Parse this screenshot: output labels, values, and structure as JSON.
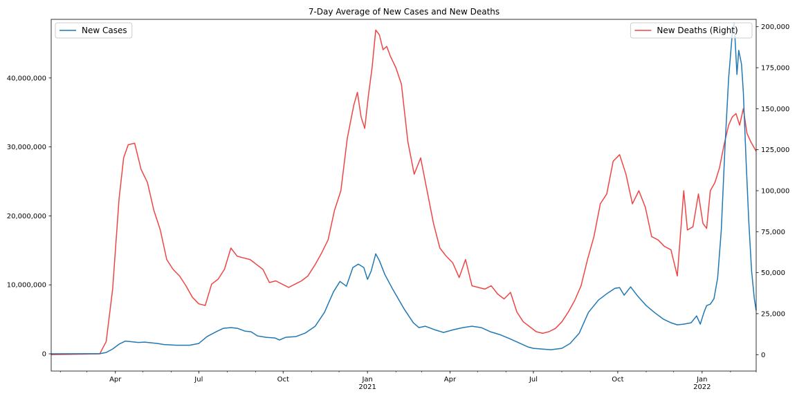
{
  "chart_data": {
    "type": "line",
    "title": "7-Day Average of New Cases and New Deaths",
    "xlabel": "",
    "ylabel_left": "",
    "ylabel_right": "",
    "x_range": [
      "2020-01-22",
      "2022-03-01"
    ],
    "x_ticks": [
      {
        "date": "2020-04-01",
        "label": "Apr",
        "sublabel": ""
      },
      {
        "date": "2020-07-01",
        "label": "Jul",
        "sublabel": ""
      },
      {
        "date": "2020-10-01",
        "label": "Oct",
        "sublabel": ""
      },
      {
        "date": "2021-01-01",
        "label": "Jan",
        "sublabel": "2021"
      },
      {
        "date": "2021-04-01",
        "label": "Apr",
        "sublabel": ""
      },
      {
        "date": "2021-07-01",
        "label": "Jul",
        "sublabel": ""
      },
      {
        "date": "2021-10-01",
        "label": "Oct",
        "sublabel": ""
      },
      {
        "date": "2022-01-01",
        "label": "Jan",
        "sublabel": "2022"
      }
    ],
    "left_axis": {
      "ylim": [
        -2500000,
        48500000
      ],
      "ticks": [
        {
          "value": 0,
          "label": "0"
        },
        {
          "value": 10000000,
          "label": "10,000,000"
        },
        {
          "value": 20000000,
          "label": "20,000,000"
        },
        {
          "value": 30000000,
          "label": "30,000,000"
        },
        {
          "value": 40000000,
          "label": "40,000,000"
        }
      ]
    },
    "right_axis": {
      "ylim": [
        -10000,
        204500
      ],
      "ticks": [
        {
          "value": 0,
          "label": "0"
        },
        {
          "value": 25000,
          "label": "25,000"
        },
        {
          "value": 50000,
          "label": "50,000"
        },
        {
          "value": 75000,
          "label": "75,000"
        },
        {
          "value": 100000,
          "label": "100,000"
        },
        {
          "value": 125000,
          "label": "125,000"
        },
        {
          "value": 150000,
          "label": "150,000"
        },
        {
          "value": 175000,
          "label": "175,000"
        },
        {
          "value": 200000,
          "label": "200,000"
        }
      ]
    },
    "series": [
      {
        "name": "New Cases",
        "axis": "left",
        "color": "#1f77b4",
        "legend_position": "upper left",
        "points": [
          [
            "2020-01-22",
            0
          ],
          [
            "2020-03-15",
            10000
          ],
          [
            "2020-03-22",
            200000
          ],
          [
            "2020-03-29",
            700000
          ],
          [
            "2020-04-05",
            1400000
          ],
          [
            "2020-04-12",
            1850000
          ],
          [
            "2020-04-19",
            1750000
          ],
          [
            "2020-04-26",
            1650000
          ],
          [
            "2020-05-03",
            1700000
          ],
          [
            "2020-05-10",
            1600000
          ],
          [
            "2020-05-17",
            1500000
          ],
          [
            "2020-05-24",
            1350000
          ],
          [
            "2020-06-07",
            1250000
          ],
          [
            "2020-06-21",
            1250000
          ],
          [
            "2020-07-01",
            1500000
          ],
          [
            "2020-07-10",
            2500000
          ],
          [
            "2020-07-20",
            3200000
          ],
          [
            "2020-07-28",
            3700000
          ],
          [
            "2020-08-05",
            3800000
          ],
          [
            "2020-08-12",
            3700000
          ],
          [
            "2020-08-20",
            3300000
          ],
          [
            "2020-08-27",
            3200000
          ],
          [
            "2020-09-03",
            2600000
          ],
          [
            "2020-09-12",
            2400000
          ],
          [
            "2020-09-22",
            2300000
          ],
          [
            "2020-09-27",
            2000000
          ],
          [
            "2020-10-04",
            2400000
          ],
          [
            "2020-10-15",
            2500000
          ],
          [
            "2020-10-25",
            3000000
          ],
          [
            "2020-11-05",
            4000000
          ],
          [
            "2020-11-15",
            6000000
          ],
          [
            "2020-11-25",
            9000000
          ],
          [
            "2020-12-02",
            10500000
          ],
          [
            "2020-12-09",
            9800000
          ],
          [
            "2020-12-16",
            12500000
          ],
          [
            "2020-12-22",
            13000000
          ],
          [
            "2020-12-28",
            12500000
          ],
          [
            "2021-01-01",
            10800000
          ],
          [
            "2021-01-05",
            12000000
          ],
          [
            "2021-01-10",
            14500000
          ],
          [
            "2021-01-14",
            13500000
          ],
          [
            "2021-01-20",
            11500000
          ],
          [
            "2021-01-28",
            9500000
          ],
          [
            "2021-02-10",
            6500000
          ],
          [
            "2021-02-20",
            4500000
          ],
          [
            "2021-02-26",
            3800000
          ],
          [
            "2021-03-05",
            4000000
          ],
          [
            "2021-03-15",
            3500000
          ],
          [
            "2021-03-25",
            3100000
          ],
          [
            "2021-04-05",
            3500000
          ],
          [
            "2021-04-15",
            3800000
          ],
          [
            "2021-04-25",
            4000000
          ],
          [
            "2021-05-05",
            3800000
          ],
          [
            "2021-05-15",
            3200000
          ],
          [
            "2021-05-25",
            2800000
          ],
          [
            "2021-06-05",
            2200000
          ],
          [
            "2021-06-15",
            1600000
          ],
          [
            "2021-06-25",
            1000000
          ],
          [
            "2021-07-01",
            800000
          ],
          [
            "2021-07-10",
            700000
          ],
          [
            "2021-07-20",
            600000
          ],
          [
            "2021-08-01",
            800000
          ],
          [
            "2021-08-10",
            1500000
          ],
          [
            "2021-08-20",
            3000000
          ],
          [
            "2021-08-30",
            6000000
          ],
          [
            "2021-09-10",
            7800000
          ],
          [
            "2021-09-20",
            8800000
          ],
          [
            "2021-09-28",
            9500000
          ],
          [
            "2021-10-03",
            9600000
          ],
          [
            "2021-10-08",
            8500000
          ],
          [
            "2021-10-15",
            9700000
          ],
          [
            "2021-10-22",
            8500000
          ],
          [
            "2021-11-01",
            7000000
          ],
          [
            "2021-11-10",
            6000000
          ],
          [
            "2021-11-20",
            5000000
          ],
          [
            "2021-11-28",
            4500000
          ],
          [
            "2021-12-05",
            4200000
          ],
          [
            "2021-12-12",
            4300000
          ],
          [
            "2021-12-20",
            4500000
          ],
          [
            "2021-12-26",
            5500000
          ],
          [
            "2021-12-30",
            4300000
          ],
          [
            "2022-01-03",
            6000000
          ],
          [
            "2022-01-06",
            7000000
          ],
          [
            "2022-01-10",
            7200000
          ],
          [
            "2022-01-14",
            8000000
          ],
          [
            "2022-01-18",
            11000000
          ],
          [
            "2022-01-22",
            18000000
          ],
          [
            "2022-01-26",
            30000000
          ],
          [
            "2022-01-30",
            40000000
          ],
          [
            "2022-02-03",
            46500000
          ],
          [
            "2022-02-05",
            48000000
          ],
          [
            "2022-02-08",
            40500000
          ],
          [
            "2022-02-10",
            44000000
          ],
          [
            "2022-02-13",
            42000000
          ],
          [
            "2022-02-15",
            38000000
          ],
          [
            "2022-02-18",
            28000000
          ],
          [
            "2022-02-21",
            19000000
          ],
          [
            "2022-02-24",
            12000000
          ],
          [
            "2022-02-27",
            8000000
          ],
          [
            "2022-03-01",
            6300000
          ]
        ]
      },
      {
        "name": "New Deaths (Right)",
        "axis": "right",
        "color": "#ef4444",
        "legend_position": "upper right",
        "points": [
          [
            "2020-01-22",
            0
          ],
          [
            "2020-03-15",
            500
          ],
          [
            "2020-03-22",
            8000
          ],
          [
            "2020-03-29",
            40000
          ],
          [
            "2020-04-05",
            95000
          ],
          [
            "2020-04-10",
            120000
          ],
          [
            "2020-04-15",
            128000
          ],
          [
            "2020-04-22",
            129000
          ],
          [
            "2020-04-29",
            113000
          ],
          [
            "2020-05-06",
            105000
          ],
          [
            "2020-05-13",
            88000
          ],
          [
            "2020-05-20",
            76000
          ],
          [
            "2020-05-27",
            58000
          ],
          [
            "2020-06-03",
            52000
          ],
          [
            "2020-06-10",
            48000
          ],
          [
            "2020-06-17",
            42000
          ],
          [
            "2020-06-24",
            35000
          ],
          [
            "2020-07-01",
            31000
          ],
          [
            "2020-07-08",
            30000
          ],
          [
            "2020-07-15",
            43000
          ],
          [
            "2020-07-22",
            46000
          ],
          [
            "2020-07-29",
            52000
          ],
          [
            "2020-08-05",
            65000
          ],
          [
            "2020-08-12",
            60000
          ],
          [
            "2020-08-19",
            59000
          ],
          [
            "2020-08-26",
            58000
          ],
          [
            "2020-09-02",
            55000
          ],
          [
            "2020-09-09",
            52000
          ],
          [
            "2020-09-16",
            44000
          ],
          [
            "2020-09-23",
            45000
          ],
          [
            "2020-09-30",
            43000
          ],
          [
            "2020-10-07",
            41000
          ],
          [
            "2020-10-14",
            43000
          ],
          [
            "2020-10-21",
            45000
          ],
          [
            "2020-10-28",
            48000
          ],
          [
            "2020-11-05",
            55000
          ],
          [
            "2020-11-12",
            62000
          ],
          [
            "2020-11-19",
            70000
          ],
          [
            "2020-11-26",
            88000
          ],
          [
            "2020-12-03",
            100000
          ],
          [
            "2020-12-10",
            132000
          ],
          [
            "2020-12-17",
            152000
          ],
          [
            "2020-12-21",
            160000
          ],
          [
            "2020-12-25",
            145000
          ],
          [
            "2020-12-29",
            138000
          ],
          [
            "2021-01-02",
            158000
          ],
          [
            "2021-01-06",
            175000
          ],
          [
            "2021-01-10",
            198000
          ],
          [
            "2021-01-14",
            195000
          ],
          [
            "2021-01-18",
            186000
          ],
          [
            "2021-01-22",
            188000
          ],
          [
            "2021-01-26",
            182000
          ],
          [
            "2021-02-01",
            175000
          ],
          [
            "2021-02-07",
            165000
          ],
          [
            "2021-02-14",
            130000
          ],
          [
            "2021-02-21",
            110000
          ],
          [
            "2021-02-28",
            120000
          ],
          [
            "2021-03-07",
            100000
          ],
          [
            "2021-03-14",
            80000
          ],
          [
            "2021-03-21",
            65000
          ],
          [
            "2021-03-28",
            60000
          ],
          [
            "2021-04-04",
            56000
          ],
          [
            "2021-04-11",
            47000
          ],
          [
            "2021-04-18",
            58000
          ],
          [
            "2021-04-25",
            42000
          ],
          [
            "2021-05-02",
            41000
          ],
          [
            "2021-05-09",
            40000
          ],
          [
            "2021-05-16",
            42000
          ],
          [
            "2021-05-23",
            37000
          ],
          [
            "2021-05-30",
            34000
          ],
          [
            "2021-06-06",
            38000
          ],
          [
            "2021-06-13",
            26000
          ],
          [
            "2021-06-20",
            20000
          ],
          [
            "2021-06-27",
            17000
          ],
          [
            "2021-07-04",
            14000
          ],
          [
            "2021-07-11",
            13000
          ],
          [
            "2021-07-18",
            14000
          ],
          [
            "2021-07-25",
            16000
          ],
          [
            "2021-08-01",
            20000
          ],
          [
            "2021-08-08",
            26000
          ],
          [
            "2021-08-15",
            33000
          ],
          [
            "2021-08-22",
            42000
          ],
          [
            "2021-08-29",
            58000
          ],
          [
            "2021-09-05",
            72000
          ],
          [
            "2021-09-12",
            92000
          ],
          [
            "2021-09-19",
            98000
          ],
          [
            "2021-09-26",
            118000
          ],
          [
            "2021-10-03",
            122000
          ],
          [
            "2021-10-10",
            110000
          ],
          [
            "2021-10-17",
            92000
          ],
          [
            "2021-10-24",
            100000
          ],
          [
            "2021-10-31",
            90000
          ],
          [
            "2021-11-07",
            72000
          ],
          [
            "2021-11-14",
            70000
          ],
          [
            "2021-11-21",
            66000
          ],
          [
            "2021-11-28",
            64000
          ],
          [
            "2021-12-05",
            48000
          ],
          [
            "2021-12-12",
            100000
          ],
          [
            "2021-12-16",
            76000
          ],
          [
            "2021-12-22",
            78000
          ],
          [
            "2021-12-28",
            98000
          ],
          [
            "2022-01-02",
            80000
          ],
          [
            "2022-01-06",
            77000
          ],
          [
            "2022-01-10",
            100000
          ],
          [
            "2022-01-15",
            105000
          ],
          [
            "2022-01-20",
            114000
          ],
          [
            "2022-01-25",
            128000
          ],
          [
            "2022-01-30",
            140000
          ],
          [
            "2022-02-03",
            145000
          ],
          [
            "2022-02-07",
            147000
          ],
          [
            "2022-02-11",
            140000
          ],
          [
            "2022-02-15",
            150000
          ],
          [
            "2022-02-19",
            135000
          ],
          [
            "2022-02-23",
            130000
          ],
          [
            "2022-02-27",
            126000
          ],
          [
            "2022-03-01",
            124000
          ]
        ]
      }
    ]
  }
}
